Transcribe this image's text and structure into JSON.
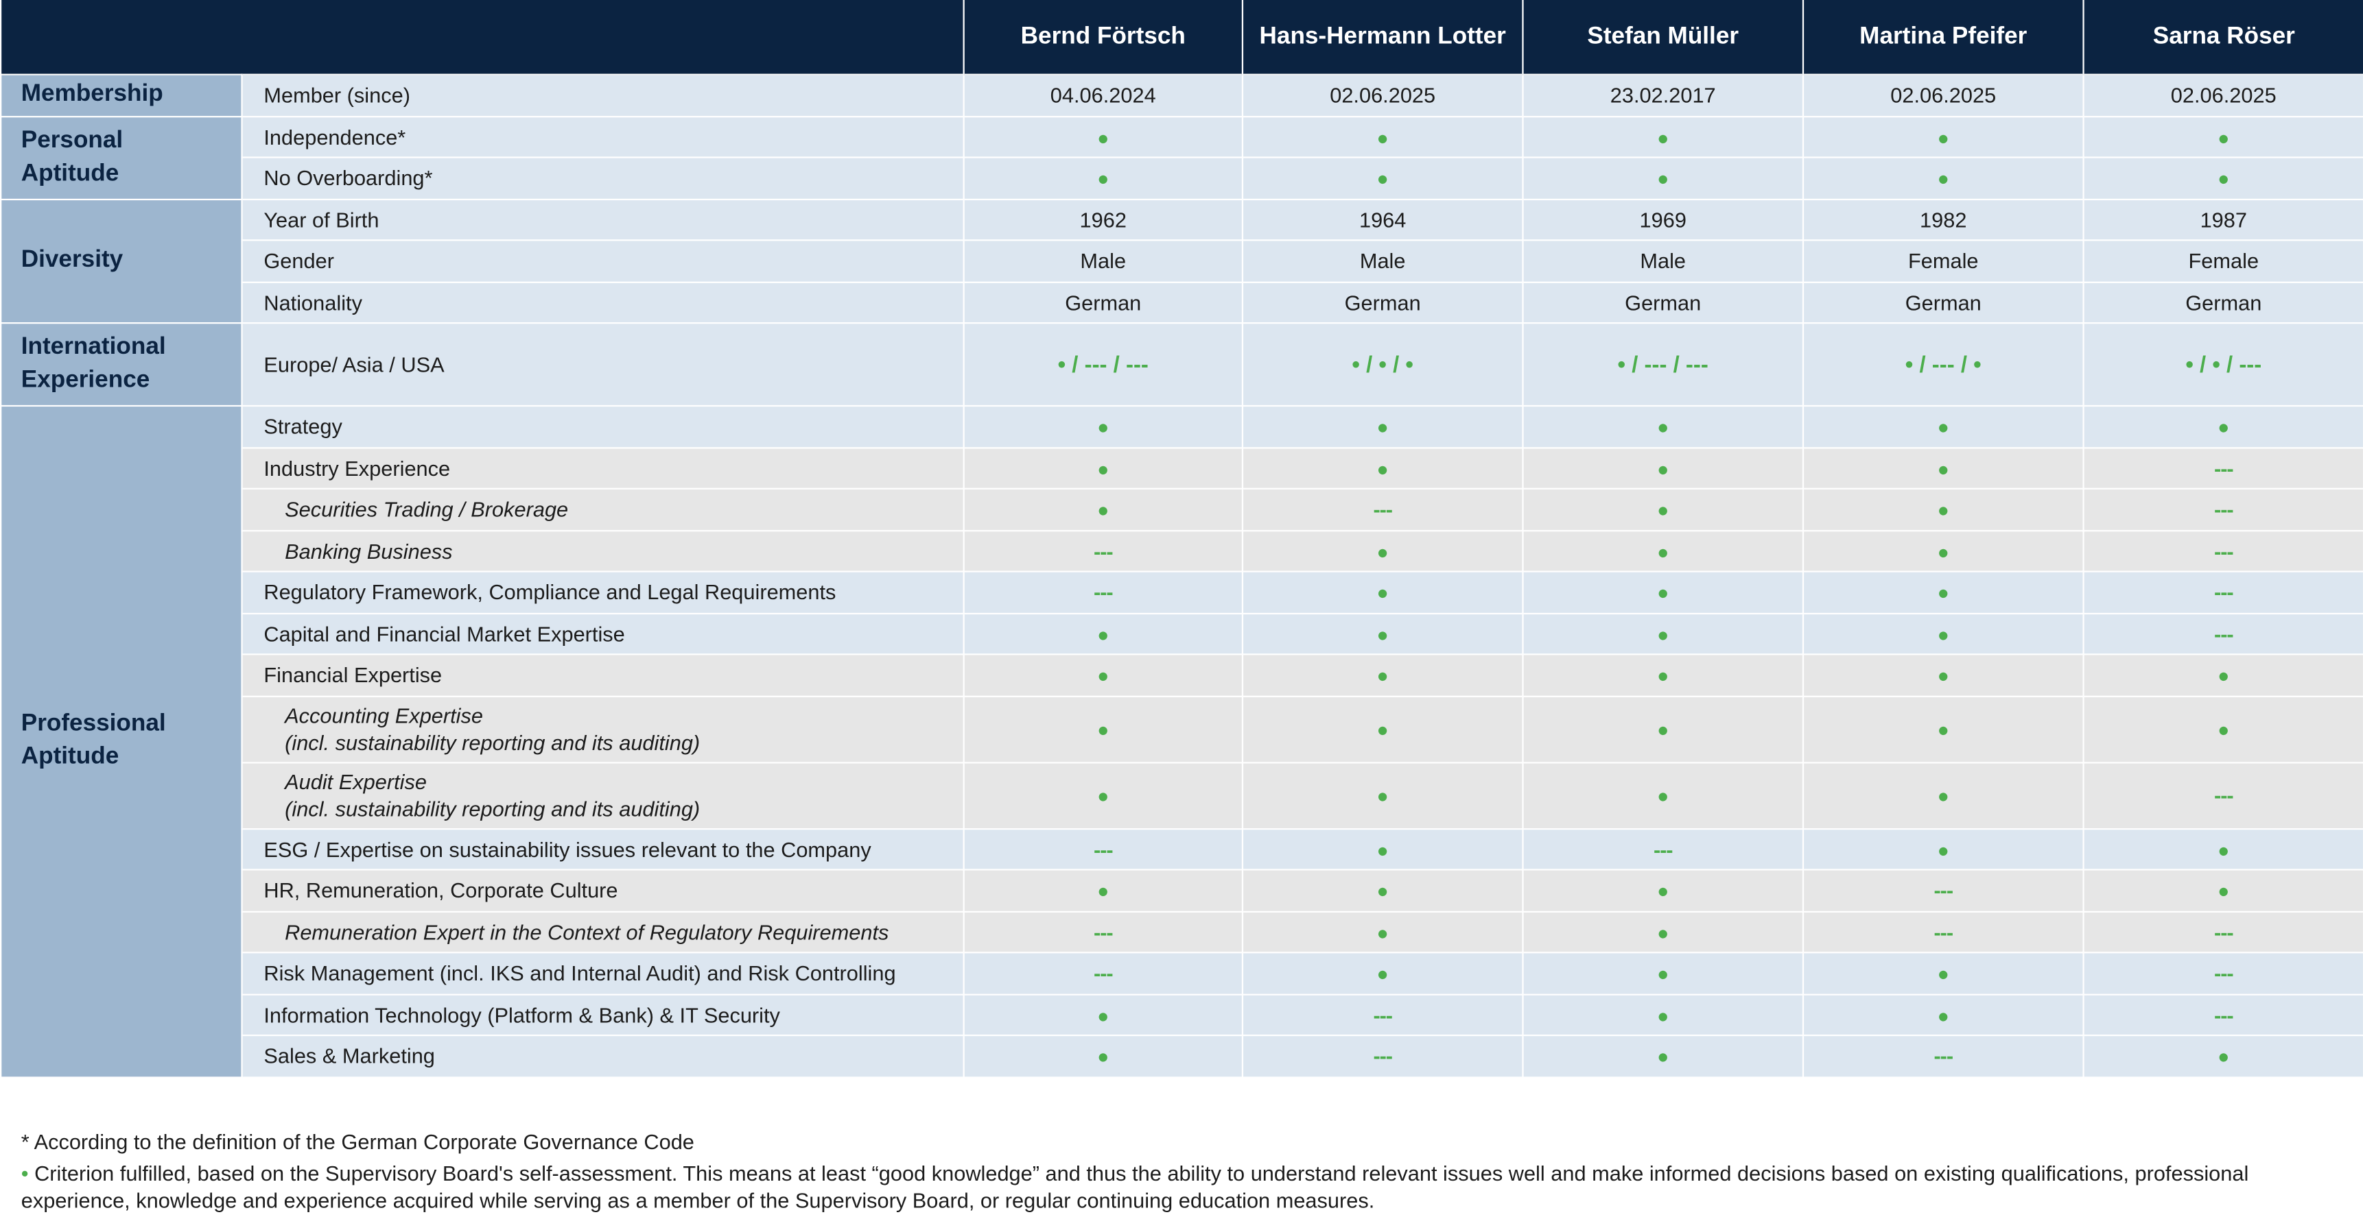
{
  "header": {
    "columns": [
      "Bernd Förtsch",
      "Hans-Hermann Lotter",
      "Stefan Müller",
      "Martina Pfeifer",
      "Sarna Röser"
    ]
  },
  "groups": [
    {
      "label": "Membership",
      "rows": [
        {
          "label": "Member (since)",
          "shade": "blue",
          "values": [
            "04.06.2024",
            "02.06.2025",
            "23.02.2017",
            "02.06.2025",
            "02.06.2025"
          ]
        }
      ]
    },
    {
      "label": "Personal Aptitude",
      "rows": [
        {
          "label": "Independence*",
          "shade": "blue",
          "values": [
            "●",
            "●",
            "●",
            "●",
            "●"
          ]
        },
        {
          "label": "No Overboarding*",
          "shade": "blue",
          "values": [
            "●",
            "●",
            "●",
            "●",
            "●"
          ]
        }
      ]
    },
    {
      "label": "Diversity",
      "rows": [
        {
          "label": "Year of Birth",
          "shade": "blue",
          "values": [
            "1962",
            "1964",
            "1969",
            "1982",
            "1987"
          ]
        },
        {
          "label": "Gender",
          "shade": "blue",
          "values": [
            "Male",
            "Male",
            "Male",
            "Female",
            "Female"
          ]
        },
        {
          "label": "Nationality",
          "shade": "blue",
          "values": [
            "German",
            "German",
            "German",
            "German",
            "German"
          ]
        }
      ]
    },
    {
      "label": "International Experience",
      "rows": [
        {
          "label": "Europe/ Asia / USA",
          "shade": "blue",
          "tall": true,
          "values": [
            "• / --- / ---",
            "• / • / •",
            "• / --- / ---",
            "• / --- / •",
            "• / • / ---"
          ]
        }
      ]
    },
    {
      "label": "Professional Aptitude",
      "rows": [
        {
          "label": "Strategy",
          "shade": "blue",
          "values": [
            "●",
            "●",
            "●",
            "●",
            "●"
          ]
        },
        {
          "label": "Industry Experience",
          "shade": "grey",
          "values": [
            "●",
            "●",
            "●",
            "●",
            "---"
          ]
        },
        {
          "label": "Securities Trading / Brokerage",
          "shade": "grey",
          "indent": true,
          "values": [
            "●",
            "---",
            "●",
            "●",
            "---"
          ]
        },
        {
          "label": "Banking Business",
          "shade": "grey",
          "indent": true,
          "values": [
            "---",
            "●",
            "●",
            "●",
            "---"
          ]
        },
        {
          "label": "Regulatory Framework, Compliance and Legal Requirements",
          "shade": "blue",
          "values": [
            "---",
            "●",
            "●",
            "●",
            "---"
          ]
        },
        {
          "label": "Capital and Financial Market Expertise",
          "shade": "blue",
          "values": [
            "●",
            "●",
            "●",
            "●",
            "---"
          ]
        },
        {
          "label": "Financial Expertise",
          "shade": "grey",
          "values": [
            "●",
            "●",
            "●",
            "●",
            "●"
          ]
        },
        {
          "label": "Accounting Expertise\n(incl. sustainability reporting and its auditing)",
          "shade": "grey",
          "indent": true,
          "values": [
            "●",
            "●",
            "●",
            "●",
            "●"
          ]
        },
        {
          "label": "Audit Expertise\n(incl. sustainability reporting and its auditing)",
          "shade": "grey",
          "indent": true,
          "values": [
            "●",
            "●",
            "●",
            "●",
            "---"
          ]
        },
        {
          "label": "ESG / Expertise on sustainability issues relevant to the Company",
          "shade": "blue",
          "values": [
            "---",
            "●",
            "---",
            "●",
            "●"
          ]
        },
        {
          "label": "HR, Remuneration, Corporate Culture",
          "shade": "grey",
          "values": [
            "●",
            "●",
            "●",
            "---",
            "●"
          ]
        },
        {
          "label": "Remuneration Expert in the Context of Regulatory Requirements",
          "shade": "grey",
          "indent": true,
          "values": [
            "---",
            "●",
            "●",
            "---",
            "---"
          ]
        },
        {
          "label": "Risk Management (incl. IKS and Internal Audit) and Risk Controlling",
          "shade": "blue",
          "values": [
            "---",
            "●",
            "●",
            "●",
            "---"
          ]
        },
        {
          "label": "Information Technology (Platform & Bank) & IT Security",
          "shade": "blue",
          "values": [
            "●",
            "---",
            "●",
            "●",
            "---"
          ]
        },
        {
          "label": "Sales & Marketing",
          "shade": "blue",
          "values": [
            "●",
            "---",
            "●",
            "---",
            "●"
          ]
        }
      ]
    }
  ],
  "footnotes": [
    {
      "text": "* According to the definition of the German Corporate Governance Code"
    },
    {
      "marker": "•",
      "text": " Criterion fulfilled, based on the Supervisory Board's self-assessment. This means at least “good knowledge” and thus the ability to understand relevant issues well and make informed decisions based on existing qualifications, professional experience, knowledge and experience acquired while serving as a member of the Supervisory Board, or regular continuing education measures."
    }
  ]
}
